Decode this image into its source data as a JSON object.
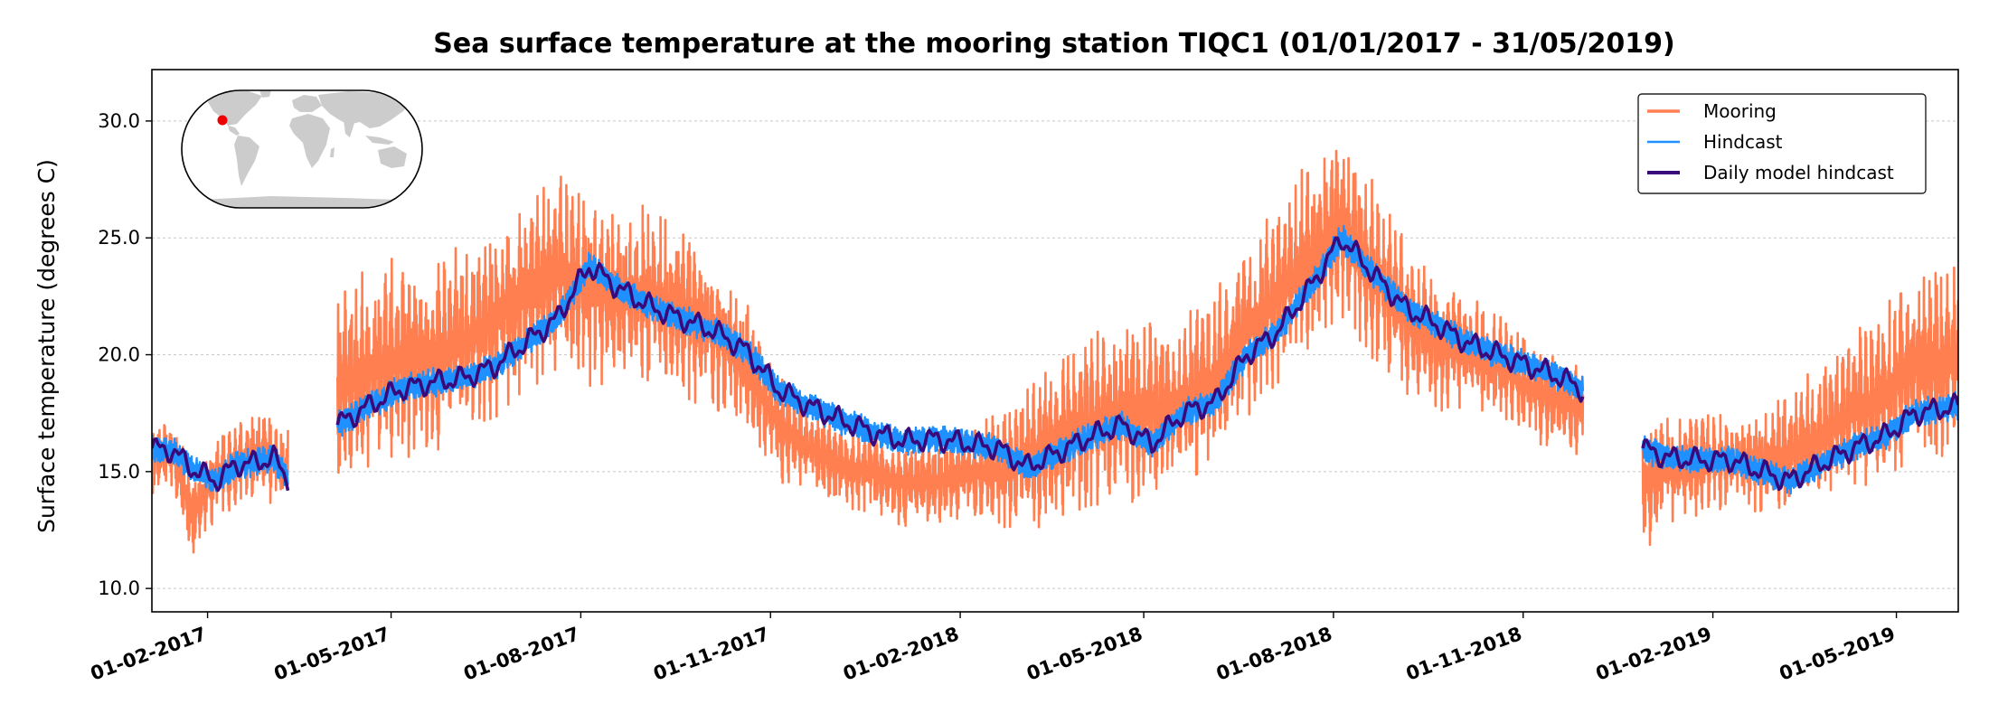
{
  "chart_data": {
    "type": "line",
    "title": "Sea surface temperature at the mooring station TIQC1 (01/01/2017 - 31/05/2019)",
    "xlabel": "",
    "ylabel": "Surface temperature (degrees C)",
    "xlim": [
      "2017-01-05",
      "2019-05-31"
    ],
    "ylim": [
      9.0,
      32.2
    ],
    "yticks": [
      10.0,
      15.0,
      20.0,
      25.0,
      30.0
    ],
    "ytick_labels": [
      "10.0",
      "15.0",
      "20.0",
      "25.0",
      "30.0"
    ],
    "xticks": [
      "2017-02-01",
      "2017-05-01",
      "2017-08-01",
      "2017-11-01",
      "2018-02-01",
      "2018-05-01",
      "2018-08-01",
      "2018-11-01",
      "2019-02-01",
      "2019-05-01"
    ],
    "xtick_labels": [
      "01-02-2017",
      "01-05-2017",
      "01-08-2017",
      "01-11-2017",
      "01-02-2018",
      "01-05-2018",
      "01-08-2018",
      "01-11-2018",
      "01-02-2019",
      "01-05-2019"
    ],
    "grid": "horizontal dotted",
    "legend_position": "top-right",
    "inset_map": {
      "shape": "rounded world map",
      "marker_color": "#ee0000",
      "position": "top-left"
    },
    "colors": {
      "mooring": "#ff7f50",
      "hindcast": "#1e90ff",
      "daily": "#3b0a7a",
      "land": "#cccccc"
    },
    "series": [
      {
        "name": "Mooring",
        "segments": [
          {
            "x": [
              "2017-01-05",
              "2017-01-15",
              "2017-01-25",
              "2017-02-05",
              "2017-02-15",
              "2017-02-25",
              "2017-03-05",
              "2017-03-12"
            ],
            "y": [
              15.5,
              15.8,
              13.2,
              14.8,
              15.4,
              15.8,
              15.5,
              15.2
            ],
            "amp": [
              1.5,
              1.6,
              2.2,
              1.8,
              1.9,
              2.0,
              2.0,
              1.8
            ]
          },
          {
            "x": [
              "2017-04-05",
              "2017-04-20",
              "2017-05-05",
              "2017-05-20",
              "2017-06-05",
              "2017-06-20",
              "2017-07-05",
              "2017-07-20",
              "2017-08-05",
              "2017-08-20",
              "2017-09-05",
              "2017-09-20",
              "2017-10-05",
              "2017-10-20",
              "2017-11-05",
              "2017-11-20",
              "2017-12-05",
              "2017-12-20",
              "2018-01-05",
              "2018-01-20",
              "2018-02-05",
              "2018-02-20",
              "2018-03-05",
              "2018-03-20",
              "2018-04-05",
              "2018-04-20",
              "2018-05-05",
              "2018-05-20",
              "2018-06-05",
              "2018-06-20",
              "2018-07-05",
              "2018-07-20",
              "2018-08-05",
              "2018-08-20",
              "2018-09-05",
              "2018-09-20",
              "2018-10-05",
              "2018-10-20",
              "2018-11-05",
              "2018-11-20",
              "2018-11-30"
            ],
            "y": [
              18.5,
              19.5,
              19.8,
              20.0,
              20.5,
              21.5,
              22.5,
              23.5,
              23.0,
              22.5,
              22.5,
              22.0,
              21.0,
              19.5,
              17.0,
              16.0,
              15.2,
              15.0,
              14.5,
              14.5,
              15.0,
              15.0,
              15.5,
              16.5,
              17.0,
              17.5,
              17.5,
              18.0,
              19.0,
              21.0,
              22.5,
              24.0,
              25.5,
              23.5,
              21.5,
              20.5,
              20.0,
              19.5,
              18.5,
              18.0,
              17.5
            ],
            "amp": [
              4.5,
              4.5,
              4.5,
              4.5,
              4.5,
              4.5,
              4.5,
              4.5,
              4.5,
              4.0,
              4.0,
              4.0,
              3.5,
              3.0,
              2.5,
              2.0,
              2.0,
              2.0,
              2.0,
              2.0,
              2.2,
              2.5,
              3.0,
              4.0,
              4.0,
              4.0,
              4.0,
              4.0,
              4.0,
              4.0,
              4.0,
              4.5,
              4.5,
              4.0,
              3.5,
              3.0,
              2.5,
              2.5,
              2.5,
              2.0,
              2.0
            ]
          },
          {
            "x": [
              "2018-12-29",
              "2019-01-10",
              "2019-01-25",
              "2019-02-10",
              "2019-02-25",
              "2019-03-10",
              "2019-03-25",
              "2019-04-10",
              "2019-04-25",
              "2019-05-10",
              "2019-05-31"
            ],
            "y": [
              14.5,
              15.0,
              15.2,
              15.5,
              15.5,
              15.8,
              16.5,
              17.5,
              18.5,
              19.5,
              19.8
            ],
            "amp": [
              3.0,
              2.5,
              2.5,
              2.0,
              2.5,
              3.0,
              3.0,
              3.5,
              4.0,
              4.5,
              4.5
            ]
          }
        ]
      },
      {
        "name": "Hindcast",
        "segments": [
          {
            "x": [
              "2017-01-05",
              "2017-01-15",
              "2017-01-25",
              "2017-02-05",
              "2017-02-15",
              "2017-02-25",
              "2017-03-05",
              "2017-03-12"
            ],
            "y": [
              16.0,
              15.9,
              15.1,
              14.6,
              15.3,
              15.4,
              15.6,
              14.7
            ]
          },
          {
            "x": [
              "2017-04-05",
              "2017-04-20",
              "2017-05-05",
              "2017-05-20",
              "2017-06-05",
              "2017-06-20",
              "2017-07-05",
              "2017-07-20",
              "2017-08-05",
              "2017-08-20",
              "2017-09-05",
              "2017-09-20",
              "2017-10-05",
              "2017-10-20",
              "2017-11-05",
              "2017-11-20",
              "2017-12-05",
              "2017-12-20",
              "2018-01-05",
              "2018-01-20",
              "2018-02-05",
              "2018-02-20",
              "2018-03-05",
              "2018-03-20",
              "2018-04-05",
              "2018-04-20",
              "2018-05-05",
              "2018-05-20",
              "2018-06-05",
              "2018-06-20",
              "2018-07-05",
              "2018-07-20",
              "2018-08-05",
              "2018-08-20",
              "2018-09-05",
              "2018-09-20",
              "2018-10-05",
              "2018-10-20",
              "2018-11-05",
              "2018-11-20",
              "2018-11-30"
            ],
            "y": [
              17.0,
              17.8,
              18.5,
              18.8,
              19.0,
              19.5,
              20.5,
              21.5,
              23.8,
              22.8,
              22.0,
              21.5,
              21.0,
              20.2,
              18.5,
              17.8,
              17.2,
              16.7,
              16.3,
              16.4,
              16.2,
              16.0,
              15.2,
              15.8,
              16.5,
              17.0,
              16.2,
              17.5,
              18.0,
              20.0,
              21.0,
              22.8,
              25.0,
              23.5,
              22.0,
              21.3,
              20.5,
              20.0,
              19.5,
              19.0,
              18.5
            ]
          },
          {
            "x": [
              "2018-12-29",
              "2019-01-10",
              "2019-01-25",
              "2019-02-10",
              "2019-02-25",
              "2019-03-10",
              "2019-03-25",
              "2019-04-10",
              "2019-04-25",
              "2019-05-10",
              "2019-05-31"
            ],
            "y": [
              16.0,
              15.6,
              15.5,
              15.5,
              15.0,
              14.6,
              15.3,
              16.0,
              16.5,
              17.5,
              17.8
            ]
          }
        ]
      },
      {
        "name": "Daily model hindcast",
        "segments": [
          {
            "x": [
              "2017-01-05",
              "2017-01-15",
              "2017-01-25",
              "2017-02-05",
              "2017-02-15",
              "2017-02-25",
              "2017-03-05",
              "2017-03-12"
            ],
            "y": [
              16.0,
              15.9,
              15.1,
              14.6,
              15.3,
              15.4,
              15.6,
              14.7
            ]
          },
          {
            "x": [
              "2017-04-05",
              "2017-04-20",
              "2017-05-05",
              "2017-05-20",
              "2017-06-05",
              "2017-06-20",
              "2017-07-05",
              "2017-07-20",
              "2017-08-05",
              "2017-08-20",
              "2017-09-05",
              "2017-09-20",
              "2017-10-05",
              "2017-10-20",
              "2017-11-05",
              "2017-11-20",
              "2017-12-05",
              "2017-12-20",
              "2018-01-05",
              "2018-01-20",
              "2018-02-05",
              "2018-02-20",
              "2018-03-05",
              "2018-03-20",
              "2018-04-05",
              "2018-04-20",
              "2018-05-05",
              "2018-05-20",
              "2018-06-05",
              "2018-06-20",
              "2018-07-05",
              "2018-07-20",
              "2018-08-05",
              "2018-08-20",
              "2018-09-05",
              "2018-09-20",
              "2018-10-05",
              "2018-10-20",
              "2018-11-05",
              "2018-11-20",
              "2018-11-30"
            ],
            "y": [
              17.0,
              17.8,
              18.5,
              18.8,
              19.0,
              19.5,
              20.5,
              21.5,
              23.8,
              22.8,
              22.0,
              21.5,
              21.0,
              20.2,
              18.5,
              17.8,
              17.2,
              16.7,
              16.3,
              16.4,
              16.2,
              16.0,
              15.2,
              15.8,
              16.5,
              17.0,
              16.2,
              17.5,
              18.0,
              20.0,
              21.0,
              22.8,
              25.0,
              23.5,
              22.0,
              21.3,
              20.5,
              20.0,
              19.5,
              19.0,
              18.5
            ]
          },
          {
            "x": [
              "2018-12-29",
              "2019-01-10",
              "2019-01-25",
              "2019-02-10",
              "2019-02-25",
              "2019-03-10",
              "2019-03-25",
              "2019-04-10",
              "2019-04-25",
              "2019-05-10",
              "2019-05-31"
            ],
            "y": [
              16.0,
              15.6,
              15.5,
              15.5,
              15.0,
              14.6,
              15.3,
              16.0,
              16.5,
              17.5,
              17.8
            ]
          }
        ]
      }
    ]
  }
}
